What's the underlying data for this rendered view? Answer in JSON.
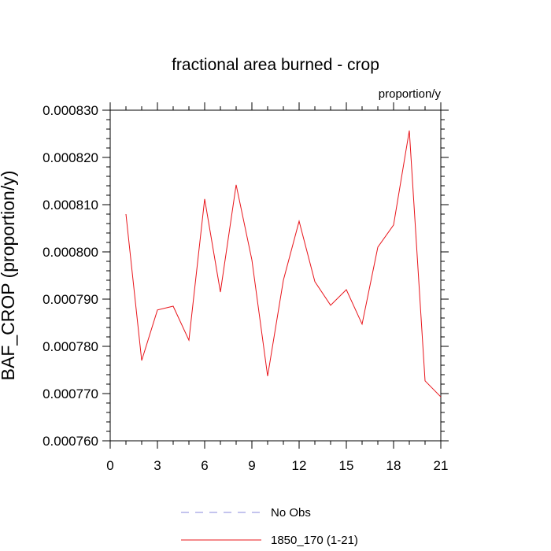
{
  "chart_data": {
    "type": "line",
    "title": "fractional area burned - crop",
    "units_label": "proportion/y",
    "xlabel": "",
    "ylabel": "BAF_CROP  (proportion/y)",
    "xlim": [
      0,
      21
    ],
    "ylim": [
      0.00076,
      0.00083
    ],
    "x_ticks": [
      0,
      3,
      6,
      9,
      12,
      15,
      18,
      21
    ],
    "x_tick_labels": [
      "0",
      "3",
      "6",
      "9",
      "12",
      "15",
      "18",
      "21"
    ],
    "y_ticks": [
      0.00076,
      0.00077,
      0.00078,
      0.00079,
      0.0008,
      0.00081,
      0.00082,
      0.00083
    ],
    "y_tick_labels": [
      "0.000760",
      "0.000770",
      "0.000780",
      "0.000790",
      "0.000800",
      "0.000810",
      "0.000820",
      "0.000830"
    ],
    "grid": false,
    "legend_position": "bottom-center",
    "series": [
      {
        "name": "No Obs",
        "color": "#8888dd",
        "dashed": true,
        "x": [],
        "values": []
      },
      {
        "name": "1850_170 (1-21)",
        "color": "#e8141a",
        "dashed": false,
        "x": [
          1,
          2,
          3,
          4,
          5,
          6,
          7,
          8,
          9,
          10,
          11,
          12,
          13,
          14,
          15,
          16,
          17,
          18,
          19,
          20,
          21
        ],
        "values": [
          0.000808,
          0.000777,
          0.0007877,
          0.0007885,
          0.0007813,
          0.0008112,
          0.0007915,
          0.0008142,
          0.0007983,
          0.0007737,
          0.000794,
          0.0008065,
          0.0007937,
          0.0007887,
          0.000792,
          0.0007847,
          0.000801,
          0.0008057,
          0.0008257,
          0.0007727,
          0.0007693
        ]
      }
    ]
  }
}
